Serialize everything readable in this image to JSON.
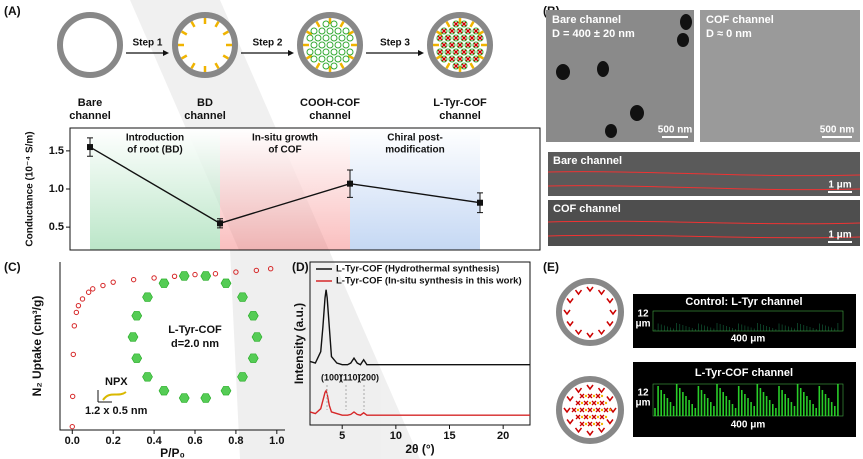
{
  "panel_labels": [
    "(A)",
    "(B)",
    "(C)",
    "(D)",
    "(E)"
  ],
  "panel_a": {
    "channels": [
      [
        "Bare",
        "channel"
      ],
      [
        "BD",
        "channel"
      ],
      [
        "COOH-COF",
        "channel"
      ],
      [
        "L-Tyr-COF",
        "channel"
      ]
    ],
    "steps": [
      "Step 1",
      "Step 2",
      "Step 3"
    ],
    "step_colors": [
      "#2e9e4a",
      "#c0272d",
      "#2a3fb5"
    ]
  },
  "panel_b": {
    "sem": [
      {
        "title": "Bare channel",
        "subtitle": "D = 400 ± 20 nm",
        "scale": "500 nm"
      },
      {
        "title": "COF channel",
        "subtitle": "D ≈ 0  nm",
        "scale": "500 nm"
      }
    ],
    "strips": [
      {
        "title": "Bare channel",
        "scale": "1 μm"
      },
      {
        "title": "COF channel",
        "scale": "1 μm"
      }
    ]
  },
  "panel_c_inset": {
    "molecule": "NPX",
    "size": "1.2 x 0.5 nm",
    "name": "L-Tyr-COF",
    "diameter": "d=2.0 nm"
  },
  "panel_e": {
    "images": [
      {
        "title": "Control: L-Tyr channel",
        "depth": [
          "12",
          "μm"
        ],
        "width": "400 μm"
      },
      {
        "title": "L-Tyr-COF channel",
        "depth": [
          "12",
          "μm"
        ],
        "width": "400 μm"
      }
    ]
  },
  "chart_data": [
    {
      "type": "line",
      "ylabel": "Conductance (10⁻⁴ S/m)",
      "categories": [
        null,
        null,
        null,
        null
      ],
      "series": [
        {
          "color": "#111111",
          "values": [
            1.55,
            0.55,
            1.07,
            0.82
          ],
          "errors": [
            0.12,
            0.06,
            0.18,
            0.13
          ]
        }
      ],
      "ylim": [
        0.2,
        1.8
      ],
      "yticks": [
        {
          "value": 0.5,
          "label": "0.5"
        },
        {
          "value": 1.0,
          "label": "1.0"
        },
        {
          "value": 1.5,
          "label": "1.5"
        }
      ],
      "annotations": [
        [
          "Introduction",
          "of root (BD)"
        ],
        [
          "In-situ growth",
          "of COF"
        ],
        [
          "Chiral post-",
          "modification"
        ]
      ],
      "annotation_colors": [
        "#2e9e4a",
        "#c0272d",
        "#4a78d0"
      ],
      "band_colors": [
        "#3cb862",
        "#f04848",
        "#5a8ee0"
      ]
    },
    {
      "type": "scatter",
      "xlabel": "P/P₀",
      "ylabel": "N₂ Uptake (cm³/g)",
      "x": [
        0,
        0.002,
        0.005,
        0.01,
        0.02,
        0.03,
        0.05,
        0.08,
        0.1,
        0.15,
        0.2,
        0.3,
        0.4,
        0.5,
        0.6,
        0.7,
        0.8,
        0.9,
        0.97
      ],
      "series": [
        {
          "color": "#d62728",
          "values": [
            2,
            20,
            45,
            62,
            70,
            74,
            78,
            82,
            84,
            86,
            88,
            89.5,
            90.5,
            91.5,
            92.5,
            93,
            94,
            95,
            96
          ]
        }
      ],
      "xlim": [
        -0.06,
        1.04
      ],
      "xticks": [
        {
          "value": 0,
          "label": "0.0"
        },
        {
          "value": 0.2,
          "label": "0.2"
        },
        {
          "value": 0.4,
          "label": "0.4"
        },
        {
          "value": 0.6,
          "label": "0.6"
        },
        {
          "value": 0.8,
          "label": "0.8"
        },
        {
          "value": 1,
          "label": "1.0"
        }
      ],
      "ylim": [
        0,
        100
      ]
    },
    {
      "type": "line",
      "xlabel": "2θ (°)",
      "ylabel": "Intensity (a.u.)",
      "x": [
        2,
        2.5,
        3,
        3.2,
        3.4,
        3.5,
        3.6,
        3.8,
        4,
        4.5,
        5,
        5.5,
        5.8,
        6.1,
        6.4,
        6.7,
        7,
        7.3,
        7.7,
        8.5,
        10,
        15,
        20,
        22.5
      ],
      "series": [
        {
          "name": "L-Tyr-COF (Hydrothermal synthesis)",
          "color": "#111111",
          "values": [
            39,
            38,
            45,
            60,
            78,
            83,
            78,
            60,
            42,
            38,
            37,
            37,
            38,
            41,
            38,
            37,
            40,
            37,
            37,
            37,
            37,
            37,
            37,
            37
          ]
        },
        {
          "name": "L-Tyr-COF (In-situ synthesis in this work)",
          "color": "#d62728",
          "values": [
            8,
            7,
            10,
            15,
            20,
            21,
            19,
            12,
            8,
            7,
            6,
            6,
            6.5,
            8,
            6.5,
            6,
            7.5,
            6,
            6,
            6,
            6,
            6,
            6,
            6
          ]
        }
      ],
      "xlim": [
        2,
        22.5
      ],
      "xticks": [
        5,
        10,
        15,
        20
      ],
      "ylim": [
        0,
        100
      ],
      "annotations": [
        "(100)",
        "(110)",
        "(200)"
      ]
    }
  ]
}
